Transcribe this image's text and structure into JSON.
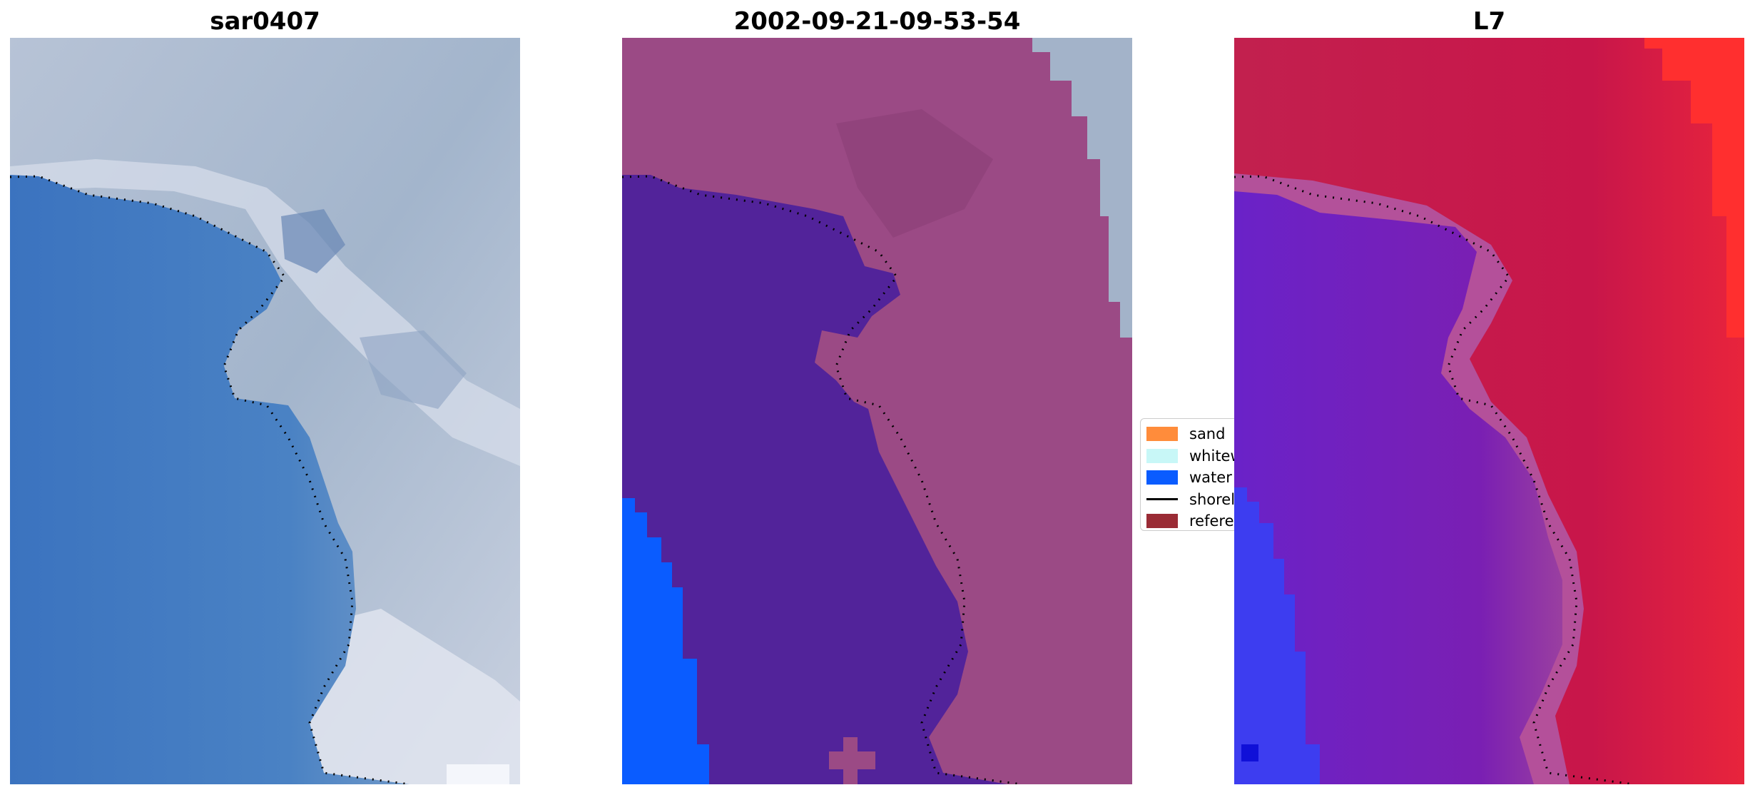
{
  "panels": [
    {
      "id": "rgb",
      "title": "sar0407"
    },
    {
      "id": "classified",
      "title": "2002-09-21-09-53-54"
    },
    {
      "id": "mndwi",
      "title": "L7"
    }
  ],
  "legend": {
    "items": [
      {
        "label": "sand",
        "kind": "patch",
        "color": "#ff8c3b"
      },
      {
        "label": "whitewater",
        "kind": "patch",
        "color": "#c8f7f7"
      },
      {
        "label": "water",
        "kind": "patch",
        "color": "#0a5cff"
      },
      {
        "label": "shoreline",
        "kind": "line",
        "color": "#000000"
      },
      {
        "label": "reference",
        "kind": "patch",
        "color": "#9a2b35"
      }
    ]
  },
  "colors": {
    "rgb_water": "#3f78c0",
    "rgb_land": "#a9b8cf",
    "rgb_bright": "#dfe4ef",
    "class_land": "#9b4a85",
    "class_water_purple": "#52239a",
    "class_sea_blue": "#0a5cff",
    "class_sky": "#9fb1c8",
    "index_red": "#c8194a",
    "index_purple": "#7a1fb3",
    "index_blue": "#3535f5",
    "shoreline": "#000000"
  }
}
